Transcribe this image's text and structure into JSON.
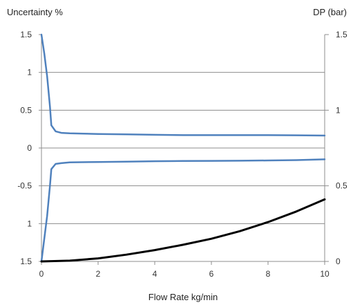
{
  "chart_data": {
    "type": "line",
    "title": "",
    "xlabel": "Flow Rate kg/min",
    "ylabel_left": "Uncertainty %",
    "ylabel_right": "DP (bar)",
    "xlim": [
      0,
      10
    ],
    "x_ticks": [
      "0",
      "2",
      "4",
      "6",
      "8",
      "10"
    ],
    "ylim_left": [
      -1.5,
      1.5
    ],
    "y_ticks_left": [
      "1.5",
      "1",
      "0.5",
      "0",
      "-0.5",
      "1",
      "1.5"
    ],
    "ylim_right": [
      0,
      1.5
    ],
    "y_ticks_right": [
      "1.5",
      "1",
      "0.5",
      "0"
    ],
    "grid": "horizontal",
    "legend": "none",
    "series": [
      {
        "axis": "left",
        "color": "#4f81bd",
        "points": [
          [
            0.0,
            1.5
          ],
          [
            0.1,
            1.25
          ],
          [
            0.2,
            0.95
          ],
          [
            0.3,
            0.55
          ],
          [
            0.35,
            0.3
          ],
          [
            0.5,
            0.22
          ],
          [
            0.7,
            0.2
          ],
          [
            1.0,
            0.195
          ],
          [
            1.5,
            0.19
          ],
          [
            2,
            0.185
          ],
          [
            3,
            0.18
          ],
          [
            4,
            0.175
          ],
          [
            5,
            0.17
          ],
          [
            6,
            0.17
          ],
          [
            7,
            0.17
          ],
          [
            8,
            0.17
          ],
          [
            9,
            0.168
          ],
          [
            10,
            0.165
          ]
        ]
      },
      {
        "axis": "left",
        "color": "#4f81bd",
        "points": [
          [
            0.0,
            -1.5
          ],
          [
            0.1,
            -1.2
          ],
          [
            0.2,
            -0.9
          ],
          [
            0.3,
            -0.5
          ],
          [
            0.35,
            -0.28
          ],
          [
            0.5,
            -0.21
          ],
          [
            0.7,
            -0.2
          ],
          [
            1.0,
            -0.19
          ],
          [
            2,
            -0.185
          ],
          [
            3,
            -0.18
          ],
          [
            4,
            -0.175
          ],
          [
            5,
            -0.172
          ],
          [
            6,
            -0.17
          ],
          [
            7,
            -0.168
          ],
          [
            8,
            -0.165
          ],
          [
            9,
            -0.16
          ],
          [
            10,
            -0.15
          ]
        ]
      },
      {
        "axis": "right",
        "color": "#000000",
        "points": [
          [
            0,
            0.0
          ],
          [
            1,
            0.005
          ],
          [
            2,
            0.02
          ],
          [
            3,
            0.045
          ],
          [
            4,
            0.075
          ],
          [
            5,
            0.11
          ],
          [
            6,
            0.15
          ],
          [
            7,
            0.2
          ],
          [
            8,
            0.26
          ],
          [
            9,
            0.33
          ],
          [
            10,
            0.41
          ]
        ]
      }
    ]
  }
}
